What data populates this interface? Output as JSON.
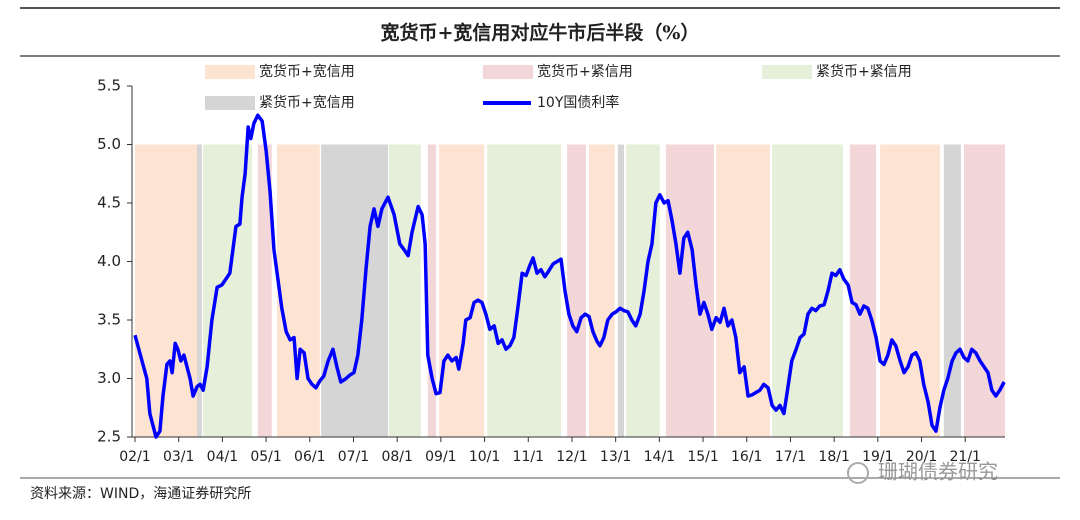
{
  "chart_data": {
    "type": "line",
    "title": "宽货币+宽信用对应牛市后半段（%）",
    "source": "资料来源：WIND，海通证券研究所",
    "watermark": "珊瑚债券研究",
    "regimes": [
      {
        "name": "宽货币+宽信用",
        "color": "#fde4d2"
      },
      {
        "name": "宽货币+紧信用",
        "color": "#f2d6d8"
      },
      {
        "name": "紧货币+紧信用",
        "color": "#e6efd9"
      },
      {
        "name": "紧货币+宽信用",
        "color": "#d5d5d5"
      }
    ],
    "shade_ylim": [
      2.5,
      5.0
    ],
    "periods": [
      {
        "start": 2002.0,
        "end": 2003.42,
        "regime": 0
      },
      {
        "start": 2003.42,
        "end": 2003.53,
        "regime": 3
      },
      {
        "start": 2003.56,
        "end": 2004.68,
        "regime": 2
      },
      {
        "start": 2004.81,
        "end": 2005.13,
        "regime": 1
      },
      {
        "start": 2005.25,
        "end": 2006.23,
        "regime": 0
      },
      {
        "start": 2006.26,
        "end": 2007.79,
        "regime": 3
      },
      {
        "start": 2007.81,
        "end": 2008.54,
        "regime": 2
      },
      {
        "start": 2008.7,
        "end": 2008.89,
        "regime": 1
      },
      {
        "start": 2008.96,
        "end": 2009.99,
        "regime": 0
      },
      {
        "start": 2010.06,
        "end": 2011.75,
        "regime": 2
      },
      {
        "start": 2011.89,
        "end": 2012.32,
        "regime": 1
      },
      {
        "start": 2012.39,
        "end": 2012.98,
        "regime": 0
      },
      {
        "start": 2013.05,
        "end": 2013.19,
        "regime": 3
      },
      {
        "start": 2013.24,
        "end": 2014.01,
        "regime": 2
      },
      {
        "start": 2014.15,
        "end": 2015.25,
        "regime": 1
      },
      {
        "start": 2015.3,
        "end": 2016.53,
        "regime": 0
      },
      {
        "start": 2016.58,
        "end": 2018.2,
        "regime": 2
      },
      {
        "start": 2018.36,
        "end": 2018.96,
        "regime": 1
      },
      {
        "start": 2019.05,
        "end": 2020.42,
        "regime": 0
      },
      {
        "start": 2020.51,
        "end": 2020.9,
        "regime": 3
      },
      {
        "start": 2020.97,
        "end": 2021.91,
        "regime": 1
      }
    ],
    "x": [
      2002.0,
      2002.16,
      2002.27,
      2002.34,
      2002.41,
      2002.48,
      2002.57,
      2002.64,
      2002.73,
      2002.8,
      2002.85,
      2002.92,
      2002.98,
      2003.05,
      2003.12,
      2003.19,
      2003.26,
      2003.33,
      2003.42,
      2003.49,
      2003.56,
      2003.65,
      2003.76,
      2003.88,
      2003.99,
      2004.08,
      2004.17,
      2004.24,
      2004.31,
      2004.4,
      2004.45,
      2004.52,
      2004.59,
      2004.65,
      2004.72,
      2004.81,
      2004.91,
      2005.0,
      2005.09,
      2005.18,
      2005.27,
      2005.36,
      2005.46,
      2005.55,
      2005.64,
      2005.71,
      2005.78,
      2005.87,
      2005.96,
      2006.05,
      2006.14,
      2006.23,
      2006.32,
      2006.42,
      2006.53,
      2006.62,
      2006.71,
      2006.83,
      2006.92,
      2007.01,
      2007.1,
      2007.19,
      2007.29,
      2007.38,
      2007.47,
      2007.56,
      2007.65,
      2007.79,
      2007.93,
      2008.06,
      2008.16,
      2008.25,
      2008.34,
      2008.48,
      2008.57,
      2008.64,
      2008.7,
      2008.8,
      2008.89,
      2008.98,
      2009.07,
      2009.16,
      2009.25,
      2009.35,
      2009.41,
      2009.51,
      2009.57,
      2009.67,
      2009.76,
      2009.85,
      2009.94,
      2010.03,
      2010.12,
      2010.22,
      2010.31,
      2010.4,
      2010.49,
      2010.58,
      2010.67,
      2010.76,
      2010.86,
      2010.95,
      2011.04,
      2011.11,
      2011.2,
      2011.29,
      2011.38,
      2011.47,
      2011.57,
      2011.66,
      2011.75,
      2011.84,
      2011.93,
      2012.02,
      2012.11,
      2012.21,
      2012.3,
      2012.39,
      2012.48,
      2012.57,
      2012.64,
      2012.73,
      2012.82,
      2012.92,
      2013.01,
      2013.1,
      2013.19,
      2013.28,
      2013.37,
      2013.46,
      2013.56,
      2013.65,
      2013.74,
      2013.83,
      2013.92,
      2014.01,
      2014.11,
      2014.2,
      2014.29,
      2014.38,
      2014.47,
      2014.56,
      2014.65,
      2014.75,
      2014.84,
      2014.93,
      2015.02,
      2015.11,
      2015.2,
      2015.3,
      2015.39,
      2015.48,
      2015.57,
      2015.66,
      2015.75,
      2015.84,
      2015.94,
      2016.03,
      2016.12,
      2016.21,
      2016.3,
      2016.39,
      2016.49,
      2016.58,
      2016.67,
      2016.76,
      2016.85,
      2016.94,
      2017.03,
      2017.13,
      2017.22,
      2017.31,
      2017.4,
      2017.49,
      2017.58,
      2017.67,
      2017.77,
      2017.86,
      2017.95,
      2018.04,
      2018.13,
      2018.22,
      2018.32,
      2018.41,
      2018.5,
      2018.59,
      2018.68,
      2018.77,
      2018.86,
      2018.96,
      2019.05,
      2019.14,
      2019.23,
      2019.32,
      2019.41,
      2019.51,
      2019.6,
      2019.69,
      2019.78,
      2019.87,
      2019.96,
      2020.05,
      2020.15,
      2020.24,
      2020.33,
      2020.42,
      2020.51,
      2020.6,
      2020.7,
      2020.79,
      2020.88,
      2020.97,
      2021.06,
      2021.15,
      2021.24,
      2021.34,
      2021.43,
      2021.52,
      2021.61,
      2021.7,
      2021.79,
      2021.89
    ],
    "series": [
      {
        "name": "10Y国债利率",
        "color": "#0000ff",
        "values": [
          3.37,
          3.15,
          3.0,
          2.7,
          2.6,
          2.5,
          2.55,
          2.85,
          3.12,
          3.15,
          3.05,
          3.3,
          3.25,
          3.15,
          3.2,
          3.1,
          3.0,
          2.85,
          2.93,
          2.95,
          2.9,
          3.1,
          3.5,
          3.78,
          3.8,
          3.85,
          3.9,
          4.1,
          4.3,
          4.32,
          4.55,
          4.75,
          5.15,
          5.05,
          5.18,
          5.25,
          5.2,
          4.95,
          4.6,
          4.1,
          3.85,
          3.6,
          3.4,
          3.33,
          3.35,
          3.0,
          3.25,
          3.22,
          3.0,
          2.95,
          2.92,
          2.98,
          3.02,
          3.15,
          3.25,
          3.1,
          2.97,
          3.0,
          3.03,
          3.05,
          3.2,
          3.5,
          3.95,
          4.3,
          4.45,
          4.3,
          4.45,
          4.55,
          4.4,
          4.15,
          4.1,
          4.05,
          4.25,
          4.47,
          4.4,
          4.15,
          3.2,
          3.0,
          2.87,
          2.88,
          3.15,
          3.2,
          3.15,
          3.18,
          3.08,
          3.3,
          3.5,
          3.52,
          3.65,
          3.67,
          3.65,
          3.55,
          3.42,
          3.45,
          3.3,
          3.33,
          3.25,
          3.28,
          3.35,
          3.6,
          3.9,
          3.88,
          3.97,
          4.03,
          3.9,
          3.93,
          3.87,
          3.92,
          3.98,
          4.0,
          4.02,
          3.75,
          3.55,
          3.45,
          3.4,
          3.52,
          3.55,
          3.53,
          3.4,
          3.32,
          3.28,
          3.35,
          3.5,
          3.55,
          3.57,
          3.6,
          3.58,
          3.57,
          3.5,
          3.45,
          3.55,
          3.75,
          4.0,
          4.15,
          4.5,
          4.57,
          4.5,
          4.52,
          4.35,
          4.15,
          3.9,
          4.2,
          4.25,
          4.1,
          3.8,
          3.55,
          3.65,
          3.55,
          3.42,
          3.52,
          3.48,
          3.6,
          3.45,
          3.5,
          3.35,
          3.05,
          3.1,
          2.85,
          2.86,
          2.88,
          2.9,
          2.95,
          2.92,
          2.77,
          2.73,
          2.77,
          2.7,
          2.92,
          3.15,
          3.25,
          3.35,
          3.38,
          3.55,
          3.6,
          3.58,
          3.62,
          3.63,
          3.75,
          3.9,
          3.88,
          3.93,
          3.85,
          3.8,
          3.65,
          3.63,
          3.55,
          3.62,
          3.6,
          3.5,
          3.35,
          3.15,
          3.12,
          3.2,
          3.33,
          3.28,
          3.15,
          3.05,
          3.1,
          3.2,
          3.22,
          3.15,
          2.95,
          2.8,
          2.6,
          2.55,
          2.75,
          2.9,
          3.0,
          3.15,
          3.22,
          3.25,
          3.18,
          3.15,
          3.25,
          3.22,
          3.15,
          3.1,
          3.05,
          2.9,
          2.85,
          2.9,
          2.97
        ]
      }
    ],
    "xlim": [
      2002,
      2021.91
    ],
    "xticks": [
      {
        "value": 2002,
        "label": "02/1"
      },
      {
        "value": 2003,
        "label": "03/1"
      },
      {
        "value": 2004,
        "label": "04/1"
      },
      {
        "value": 2005,
        "label": "05/1"
      },
      {
        "value": 2006,
        "label": "06/1"
      },
      {
        "value": 2007,
        "label": "07/1"
      },
      {
        "value": 2008,
        "label": "08/1"
      },
      {
        "value": 2009,
        "label": "09/1"
      },
      {
        "value": 2010,
        "label": "10/1"
      },
      {
        "value": 2011,
        "label": "11/1"
      },
      {
        "value": 2012,
        "label": "12/1"
      },
      {
        "value": 2013,
        "label": "13/1"
      },
      {
        "value": 2014,
        "label": "14/1"
      },
      {
        "value": 2015,
        "label": "15/1"
      },
      {
        "value": 2016,
        "label": "16/1"
      },
      {
        "value": 2017,
        "label": "17/1"
      },
      {
        "value": 2018,
        "label": "18/1"
      },
      {
        "value": 2019,
        "label": "19/1"
      },
      {
        "value": 2020,
        "label": "20/1"
      },
      {
        "value": 2021,
        "label": "21/1"
      }
    ],
    "ylim": [
      2.5,
      5.5
    ],
    "yticks": [
      2.5,
      {
        "value": 3,
        "label": "3.0"
      },
      3.5,
      {
        "value": 4,
        "label": "4.0"
      },
      4.5,
      {
        "value": 5,
        "label": "5.0"
      },
      5.5
    ],
    "grid": false
  }
}
